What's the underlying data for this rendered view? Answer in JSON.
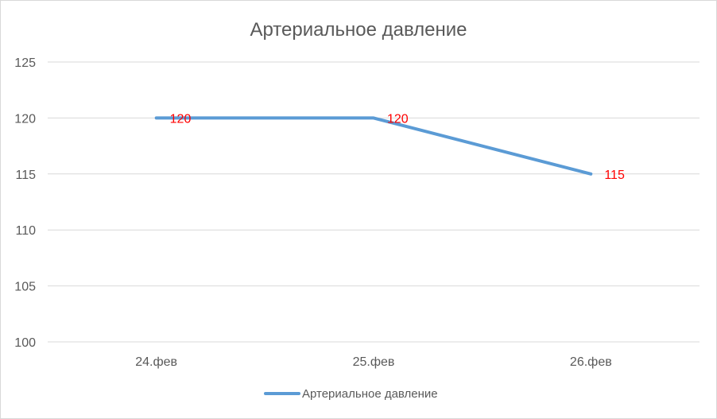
{
  "chart_data": {
    "type": "line",
    "title": "Артериальное давление",
    "xlabel": "",
    "ylabel": "",
    "categories": [
      "24.фев",
      "25.фев",
      "26.фев"
    ],
    "series": [
      {
        "name": "Артериальное давление",
        "values": [
          120,
          120,
          115
        ]
      }
    ],
    "ylim": [
      100,
      125
    ],
    "yticks": [
      100,
      105,
      110,
      115,
      120,
      125
    ],
    "grid": true,
    "legend": "bottom",
    "colors": {
      "line": "#5b9bd5",
      "data_label": "#ff0000",
      "grid": "#d9d9d9",
      "text": "#595959"
    }
  }
}
